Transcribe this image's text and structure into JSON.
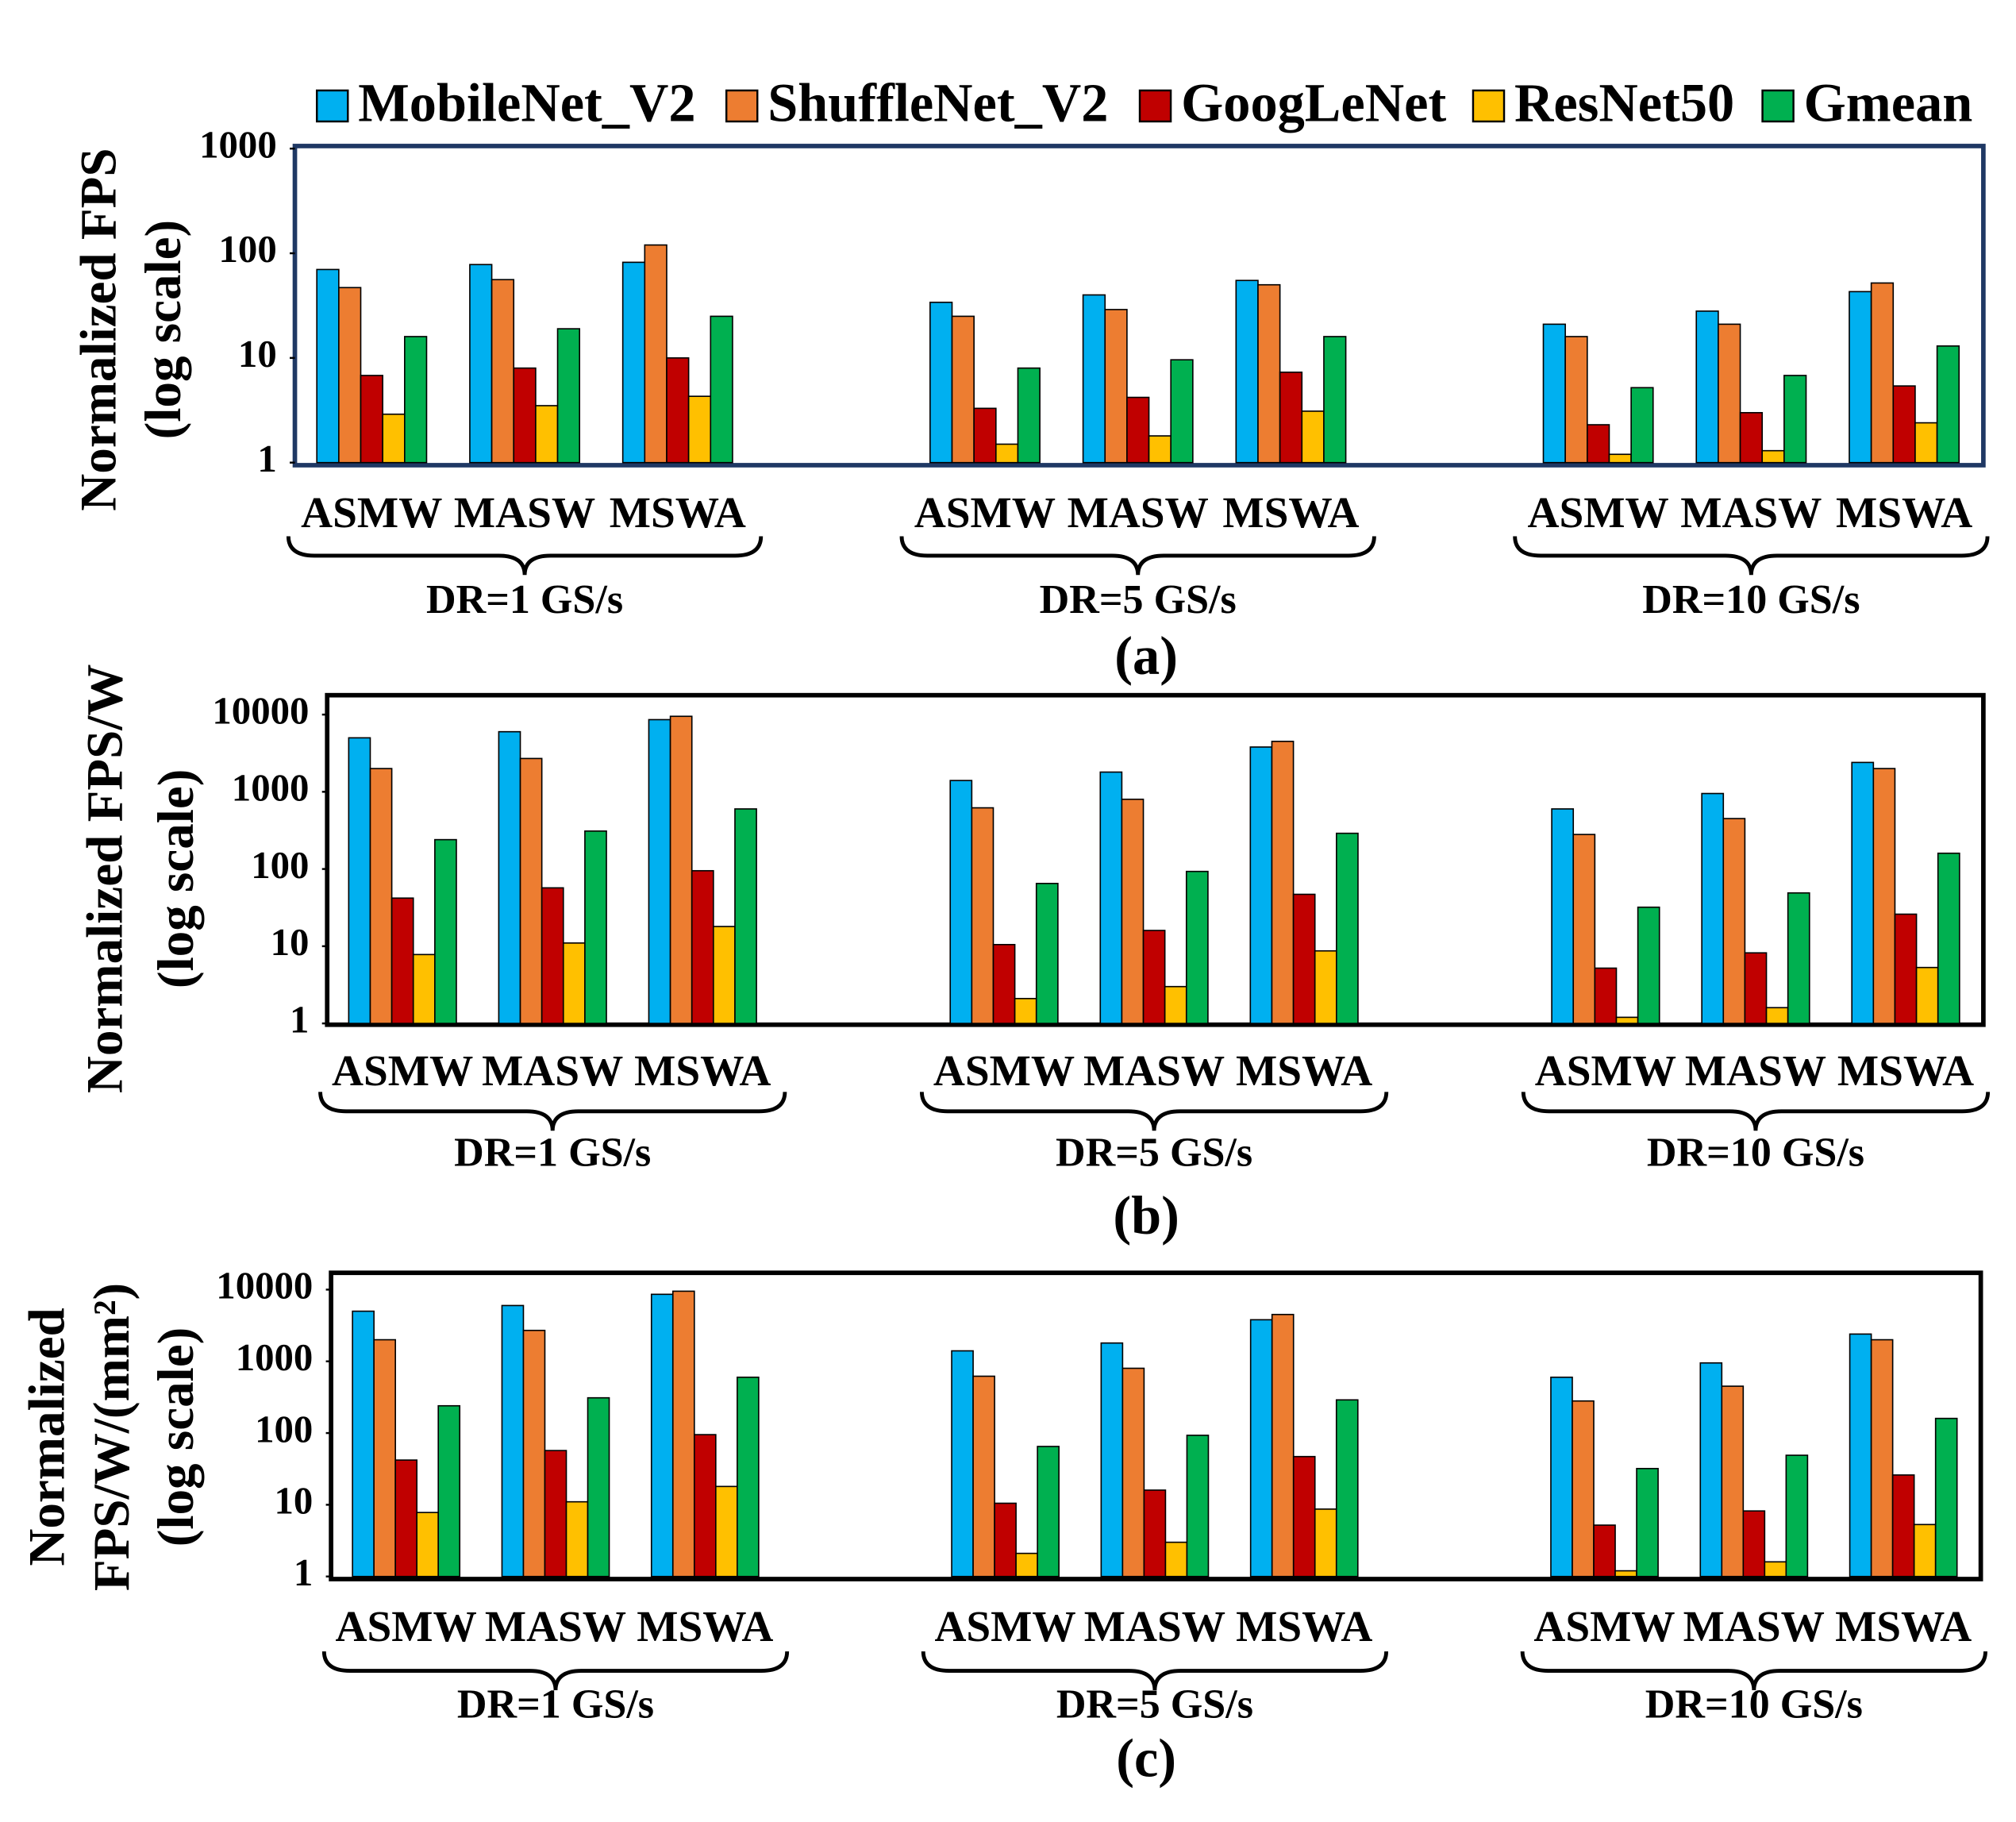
{
  "chart_data": [
    {
      "type": "bar",
      "log_scale": true,
      "caption": "(a)",
      "ylabel": [
        "Normalized FPS",
        "(log scale)"
      ],
      "categories": [
        "ASMW",
        "MASW",
        "MSWA",
        "ASMW",
        "MASW",
        "MSWA",
        "ASMW",
        "MASW",
        "MSWA"
      ],
      "groups": [
        "DR=1 GS/s",
        "DR=5 GS/s",
        "DR=10 GS/s"
      ],
      "ylim": [
        1,
        1000
      ],
      "yticks": [
        1,
        10,
        100,
        1000
      ],
      "series": [
        {
          "name": "MobileNet_V2",
          "color": "#00b0f0",
          "values": [
            70,
            78,
            82,
            34,
            40,
            55,
            21,
            28,
            43
          ]
        },
        {
          "name": "ShuffleNet_V2",
          "color": "#ed7d31",
          "values": [
            47,
            56,
            120,
            25,
            29,
            50,
            16,
            21,
            52
          ]
        },
        {
          "name": "GoogLeNet",
          "color": "#c00000",
          "values": [
            6.8,
            8,
            10,
            3.3,
            4.2,
            7.3,
            2.3,
            3,
            5.4
          ]
        },
        {
          "name": "ResNet50",
          "color": "#ffc000",
          "values": [
            2.9,
            3.5,
            4.3,
            1.5,
            1.8,
            3.1,
            1.2,
            1.3,
            2.4
          ]
        },
        {
          "name": "Gmean",
          "color": "#00b050",
          "values": [
            16,
            19,
            25,
            8,
            9.6,
            16,
            5.2,
            6.8,
            13
          ]
        }
      ]
    },
    {
      "type": "bar",
      "log_scale": true,
      "caption": "(b)",
      "ylabel": [
        "Normalized FPS/W",
        "(log scale)"
      ],
      "categories": [
        "ASMW",
        "MASW",
        "MSWA",
        "ASMW",
        "MASW",
        "MSWA",
        "ASMW",
        "MASW",
        "MSWA"
      ],
      "groups": [
        "DR=1 GS/s",
        "DR=5 GS/s",
        "DR=10 GS/s"
      ],
      "ylim": [
        1,
        10000
      ],
      "yticks": [
        1,
        10,
        100,
        1000,
        10000
      ],
      "series": [
        {
          "color": "#00b0f0",
          "values": [
            5000,
            6000,
            8600,
            1400,
            1800,
            3800,
            600,
            950,
            2400
          ]
        },
        {
          "color": "#ed7d31",
          "values": [
            2000,
            2700,
            9500,
            620,
            800,
            4500,
            280,
            450,
            2000
          ]
        },
        {
          "color": "#c00000",
          "values": [
            42,
            57,
            95,
            10.5,
            16,
            47,
            5.2,
            8.2,
            26
          ]
        },
        {
          "color": "#ffc000",
          "values": [
            7.8,
            11,
            18,
            2.1,
            3,
            8.7,
            1.2,
            1.6,
            5.3
          ]
        },
        {
          "color": "#00b050",
          "values": [
            240,
            310,
            600,
            65,
            93,
            290,
            32,
            49,
            160
          ]
        }
      ]
    },
    {
      "type": "bar",
      "log_scale": true,
      "caption": "(c)",
      "ylabel": [
        "Normalized",
        "FPS/W/(mm²)",
        "(log scale)"
      ],
      "categories": [
        "ASMW",
        "MASW",
        "MSWA",
        "ASMW",
        "MASW",
        "MSWA",
        "ASMW",
        "MASW",
        "MSWA"
      ],
      "groups": [
        "DR=1 GS/s",
        "DR=5 GS/s",
        "DR=10 GS/s"
      ],
      "ylim": [
        1,
        10000
      ],
      "yticks": [
        1,
        10,
        100,
        1000,
        10000
      ],
      "series": [
        {
          "color": "#00b0f0",
          "values": [
            5000,
            6000,
            8600,
            1400,
            1800,
            3800,
            600,
            950,
            2400
          ]
        },
        {
          "color": "#ed7d31",
          "values": [
            2000,
            2700,
            9500,
            620,
            800,
            4500,
            280,
            450,
            2000
          ]
        },
        {
          "color": "#c00000",
          "values": [
            42,
            57,
            95,
            10.5,
            16,
            47,
            5.2,
            8.2,
            26
          ]
        },
        {
          "color": "#ffc000",
          "values": [
            7.8,
            11,
            18,
            2.1,
            3,
            8.7,
            1.2,
            1.6,
            5.3
          ]
        },
        {
          "color": "#00b050",
          "values": [
            240,
            310,
            600,
            65,
            93,
            290,
            32,
            49,
            160
          ]
        }
      ]
    }
  ]
}
